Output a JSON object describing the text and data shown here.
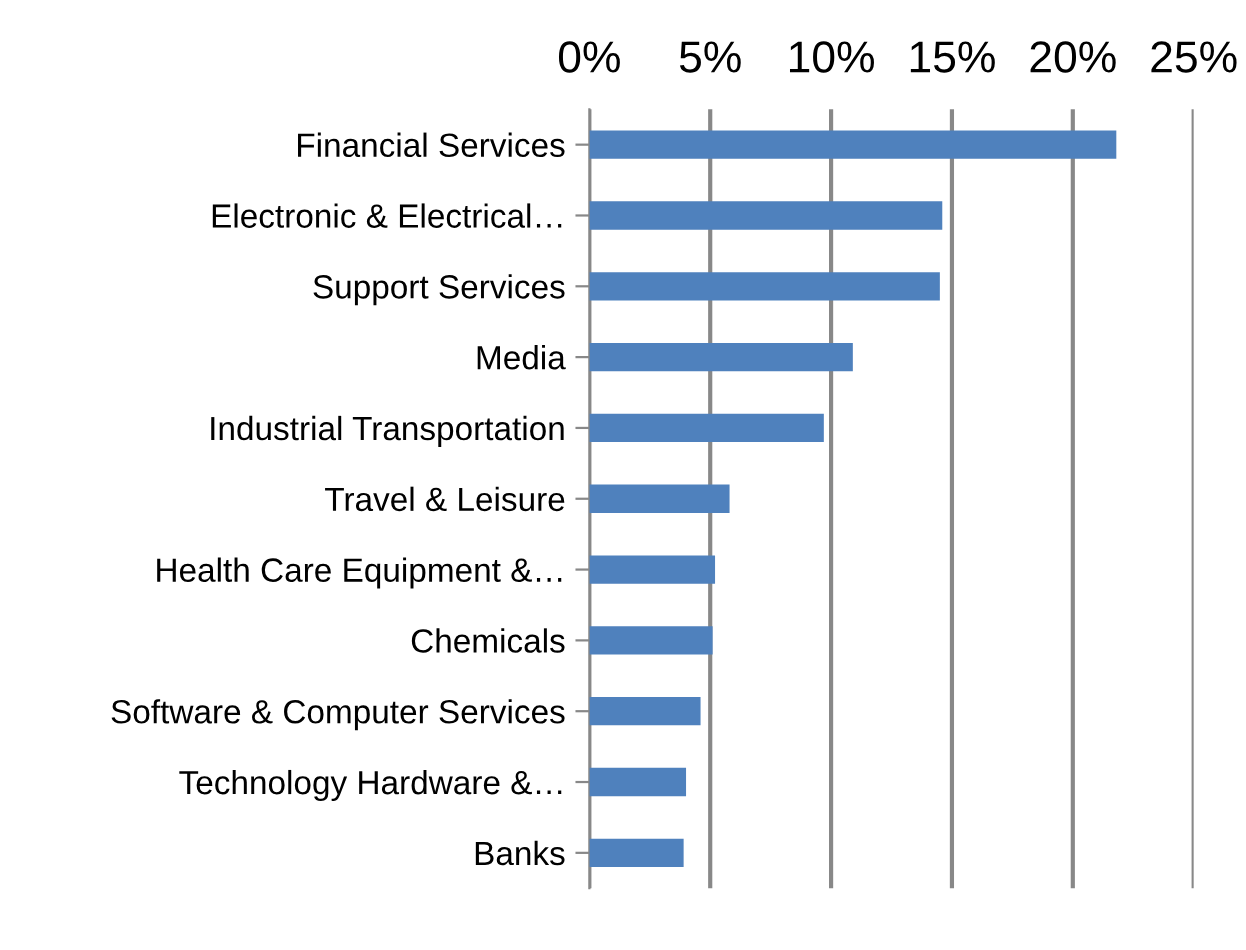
{
  "chart_data": {
    "type": "bar",
    "orientation": "horizontal",
    "categories": [
      "Financial Services",
      "Electronic & Electrical…",
      "Support Services",
      "Media",
      "Industrial Transportation",
      "Travel & Leisure",
      "Health Care Equipment &…",
      "Chemicals",
      "Software & Computer Services",
      "Technology Hardware &…",
      "Banks"
    ],
    "values": [
      21.8,
      14.6,
      14.5,
      10.9,
      9.7,
      5.8,
      5.2,
      5.1,
      4.6,
      4.0,
      3.9
    ],
    "color": "#4f81bd",
    "xlim": [
      0,
      25
    ],
    "xticks": [
      {
        "value": 0,
        "label": "0%"
      },
      {
        "value": 5,
        "label": "5%"
      },
      {
        "value": 10,
        "label": "10%"
      },
      {
        "value": 15,
        "label": "15%"
      },
      {
        "value": 20,
        "label": "20%"
      },
      {
        "value": 25,
        "label": "25%"
      }
    ],
    "grid": "x",
    "legend": false
  }
}
